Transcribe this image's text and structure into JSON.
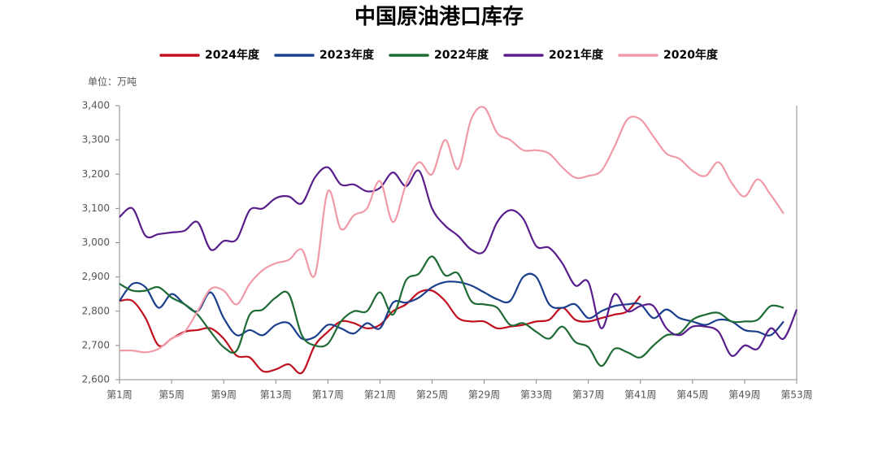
{
  "chart_data": {
    "type": "line",
    "title": "中国原油港口库存",
    "unit": "单位：万吨",
    "categories": [
      "第1周",
      null,
      null,
      null,
      "第5周",
      null,
      null,
      null,
      "第9周",
      null,
      null,
      null,
      "第13周",
      null,
      null,
      null,
      "第17周",
      null,
      null,
      null,
      "第21周",
      null,
      null,
      null,
      "第25周",
      null,
      null,
      null,
      "第29周",
      null,
      null,
      null,
      "第33周",
      null,
      null,
      null,
      "第37周",
      null,
      null,
      null,
      "第41周",
      null,
      null,
      null,
      "第45周",
      null,
      null,
      null,
      "第49周",
      null,
      null,
      null,
      "第53周"
    ],
    "series": [
      {
        "name": "2024年度",
        "color": "#c00f1e",
        "values": [
          2830,
          2830,
          2780,
          2700,
          2720,
          2740,
          2745,
          2750,
          2720,
          2670,
          2665,
          2625,
          2630,
          2645,
          2620,
          2700,
          2740,
          2770,
          2765,
          2750,
          2760,
          2800,
          2820,
          2855,
          2860,
          2830,
          2780,
          2770,
          2770,
          2750,
          2755,
          2760,
          2770,
          2775,
          2810,
          2775,
          2770,
          2780,
          2790,
          2800,
          2845,
          null,
          null,
          null,
          null,
          null,
          null,
          null,
          null,
          null,
          null,
          null,
          null
        ]
      },
      {
        "name": "2023年度",
        "color": "#1a3f8c",
        "values": [
          2830,
          2880,
          2870,
          2810,
          2850,
          2820,
          2800,
          2855,
          2780,
          2730,
          2745,
          2730,
          2760,
          2765,
          2720,
          2725,
          2760,
          2750,
          2735,
          2765,
          2750,
          2825,
          2825,
          2840,
          2870,
          2885,
          2885,
          2875,
          2855,
          2835,
          2830,
          2900,
          2900,
          2820,
          2810,
          2820,
          2780,
          2800,
          2815,
          2820,
          2820,
          2780,
          2805,
          2780,
          2770,
          2760,
          2775,
          2770,
          2745,
          2740,
          2730,
          2770,
          null
        ]
      },
      {
        "name": "2022年度",
        "color": "#1e6b35",
        "values": [
          2880,
          2860,
          2860,
          2870,
          2840,
          2820,
          2790,
          2740,
          2695,
          2685,
          2790,
          2805,
          2840,
          2850,
          2730,
          2700,
          2705,
          2770,
          2800,
          2800,
          2855,
          2790,
          2890,
          2910,
          2960,
          2905,
          2910,
          2830,
          2820,
          2810,
          2760,
          2765,
          2740,
          2720,
          2755,
          2710,
          2695,
          2640,
          2690,
          2680,
          2665,
          2700,
          2730,
          2735,
          2775,
          2790,
          2795,
          2770,
          2770,
          2775,
          2815,
          2810,
          null
        ]
      },
      {
        "name": "2021年度",
        "color": "#5a1e8c",
        "values": [
          3075,
          3100,
          3020,
          3025,
          3030,
          3035,
          3060,
          2980,
          3005,
          3010,
          3095,
          3100,
          3130,
          3135,
          3115,
          3190,
          3220,
          3170,
          3170,
          3150,
          3160,
          3205,
          3165,
          3210,
          3100,
          3050,
          3020,
          2980,
          2975,
          3060,
          3095,
          3070,
          2990,
          2985,
          2940,
          2875,
          2885,
          2750,
          2850,
          2800,
          2815,
          2815,
          2750,
          2730,
          2755,
          2755,
          2740,
          2670,
          2700,
          2690,
          2750,
          2720,
          2805
        ]
      },
      {
        "name": "2020年度",
        "color": "#f09aa8",
        "values": [
          2685,
          2685,
          2680,
          2690,
          2720,
          2740,
          2800,
          2865,
          2860,
          2820,
          2880,
          2920,
          2940,
          2950,
          2980,
          2905,
          3150,
          3040,
          3080,
          3100,
          3180,
          3060,
          3170,
          3235,
          3200,
          3300,
          3215,
          3360,
          3395,
          3320,
          3300,
          3270,
          3270,
          3260,
          3220,
          3190,
          3195,
          3210,
          3280,
          3360,
          3360,
          3310,
          3260,
          3245,
          3210,
          3195,
          3235,
          3175,
          3135,
          3185,
          3140,
          3085,
          null
        ]
      }
    ],
    "ylim": [
      2600,
      3400
    ],
    "yticks": [
      {
        "value": 2600,
        "label": "2,600"
      },
      {
        "value": 2700,
        "label": "2,700"
      },
      {
        "value": 2800,
        "label": "2,800"
      },
      {
        "value": 2900,
        "label": "2,900"
      },
      {
        "value": 3000,
        "label": "3,000"
      },
      {
        "value": 3100,
        "label": "3,100"
      },
      {
        "value": 3200,
        "label": "3,200"
      },
      {
        "value": 3300,
        "label": "3,300"
      },
      {
        "value": 3400,
        "label": "3,400"
      }
    ],
    "legend": "top"
  }
}
